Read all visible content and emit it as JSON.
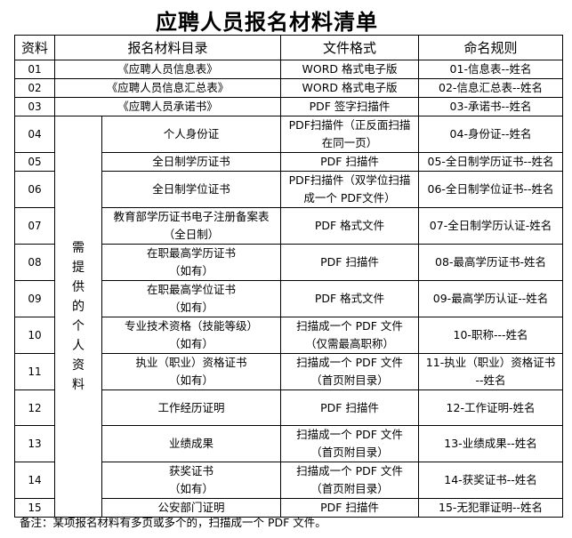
{
  "title": "应聘人员报名材料清单",
  "headers": [
    "资料",
    "报名材料目录",
    "文件格式",
    "命名规则"
  ],
  "group_label": "需提供的个人资料",
  "rows": [
    {
      "no": "01",
      "item": "《应聘人员信息表》",
      "format": "WORD 格式电子版",
      "naming": "01-信息表--姓名"
    },
    {
      "no": "02",
      "item": "《应聘人员信息汇总表》",
      "format": "WORD 格式电子版",
      "naming": "02-信息汇总表--姓名"
    },
    {
      "no": "03",
      "item": "《应聘人员承诺书》",
      "format": "PDF 签字扫描件",
      "naming": "03-承诺书--姓名"
    },
    {
      "no": "04",
      "item": "个人身份证",
      "format": "PDF扫描件（正反面扫描\n在同一页）",
      "naming": "04-身份证--姓名"
    },
    {
      "no": "05",
      "item": "全日制学历证书",
      "format": "PDF 扫描件",
      "naming": "05-全日制学历证书--姓名"
    },
    {
      "no": "06",
      "item": "全日制学位证书",
      "format": "PDF扫描件（双学位扫描\n成一个 PDF文件）",
      "naming": "06-全日制学位证书--姓名"
    },
    {
      "no": "07",
      "item": "教育部学历证书电子注册备案表\n（全日制）",
      "format": "PDF 格式文件",
      "naming": "07-全日制学历认证-姓名"
    },
    {
      "no": "08",
      "item": "在职最高学历证书\n（如有）",
      "format": "PDF 扫描件",
      "naming": "08-最高学历证书-姓名"
    },
    {
      "no": "09",
      "item": "在职最高学位证书\n（如有）",
      "format": "PDF 格式文件",
      "naming": "09-最高学历认证--姓名"
    },
    {
      "no": "10",
      "item": "专业技术资格（技能等级）\n（如有）",
      "format": "扫描成一个 PDF 文件\n（仅需最高职称）",
      "naming": "10-职称---姓名"
    },
    {
      "no": "11",
      "item": "执业（职业）资格证书\n（如有）",
      "format": "扫描成一个 PDF 文件\n（首页附目录）",
      "naming": "11-执业（职业）资格证书\n--姓名"
    },
    {
      "no": "12",
      "item": "工作经历证明",
      "format": "PDF 扫描件",
      "naming": "12-工作证明-姓名"
    },
    {
      "no": "13",
      "item": "业绩成果",
      "format": "扫描成一个 PDF 文件\n（首页附目录）",
      "naming": "13-业绩成果--姓名"
    },
    {
      "no": "14",
      "item": "获奖证书\n（如有）",
      "format": "扫描成一个 PDF 文件\n（首页附目录）",
      "naming": "14-获奖证书--姓名"
    },
    {
      "no": "15",
      "item": "公安部门证明",
      "format": "PDF 扫描件",
      "naming": "15-无犯罪证明--姓名"
    }
  ],
  "note": "备注：某项报名材料有多页或多个的，扫描成一个 PDF 文件。"
}
